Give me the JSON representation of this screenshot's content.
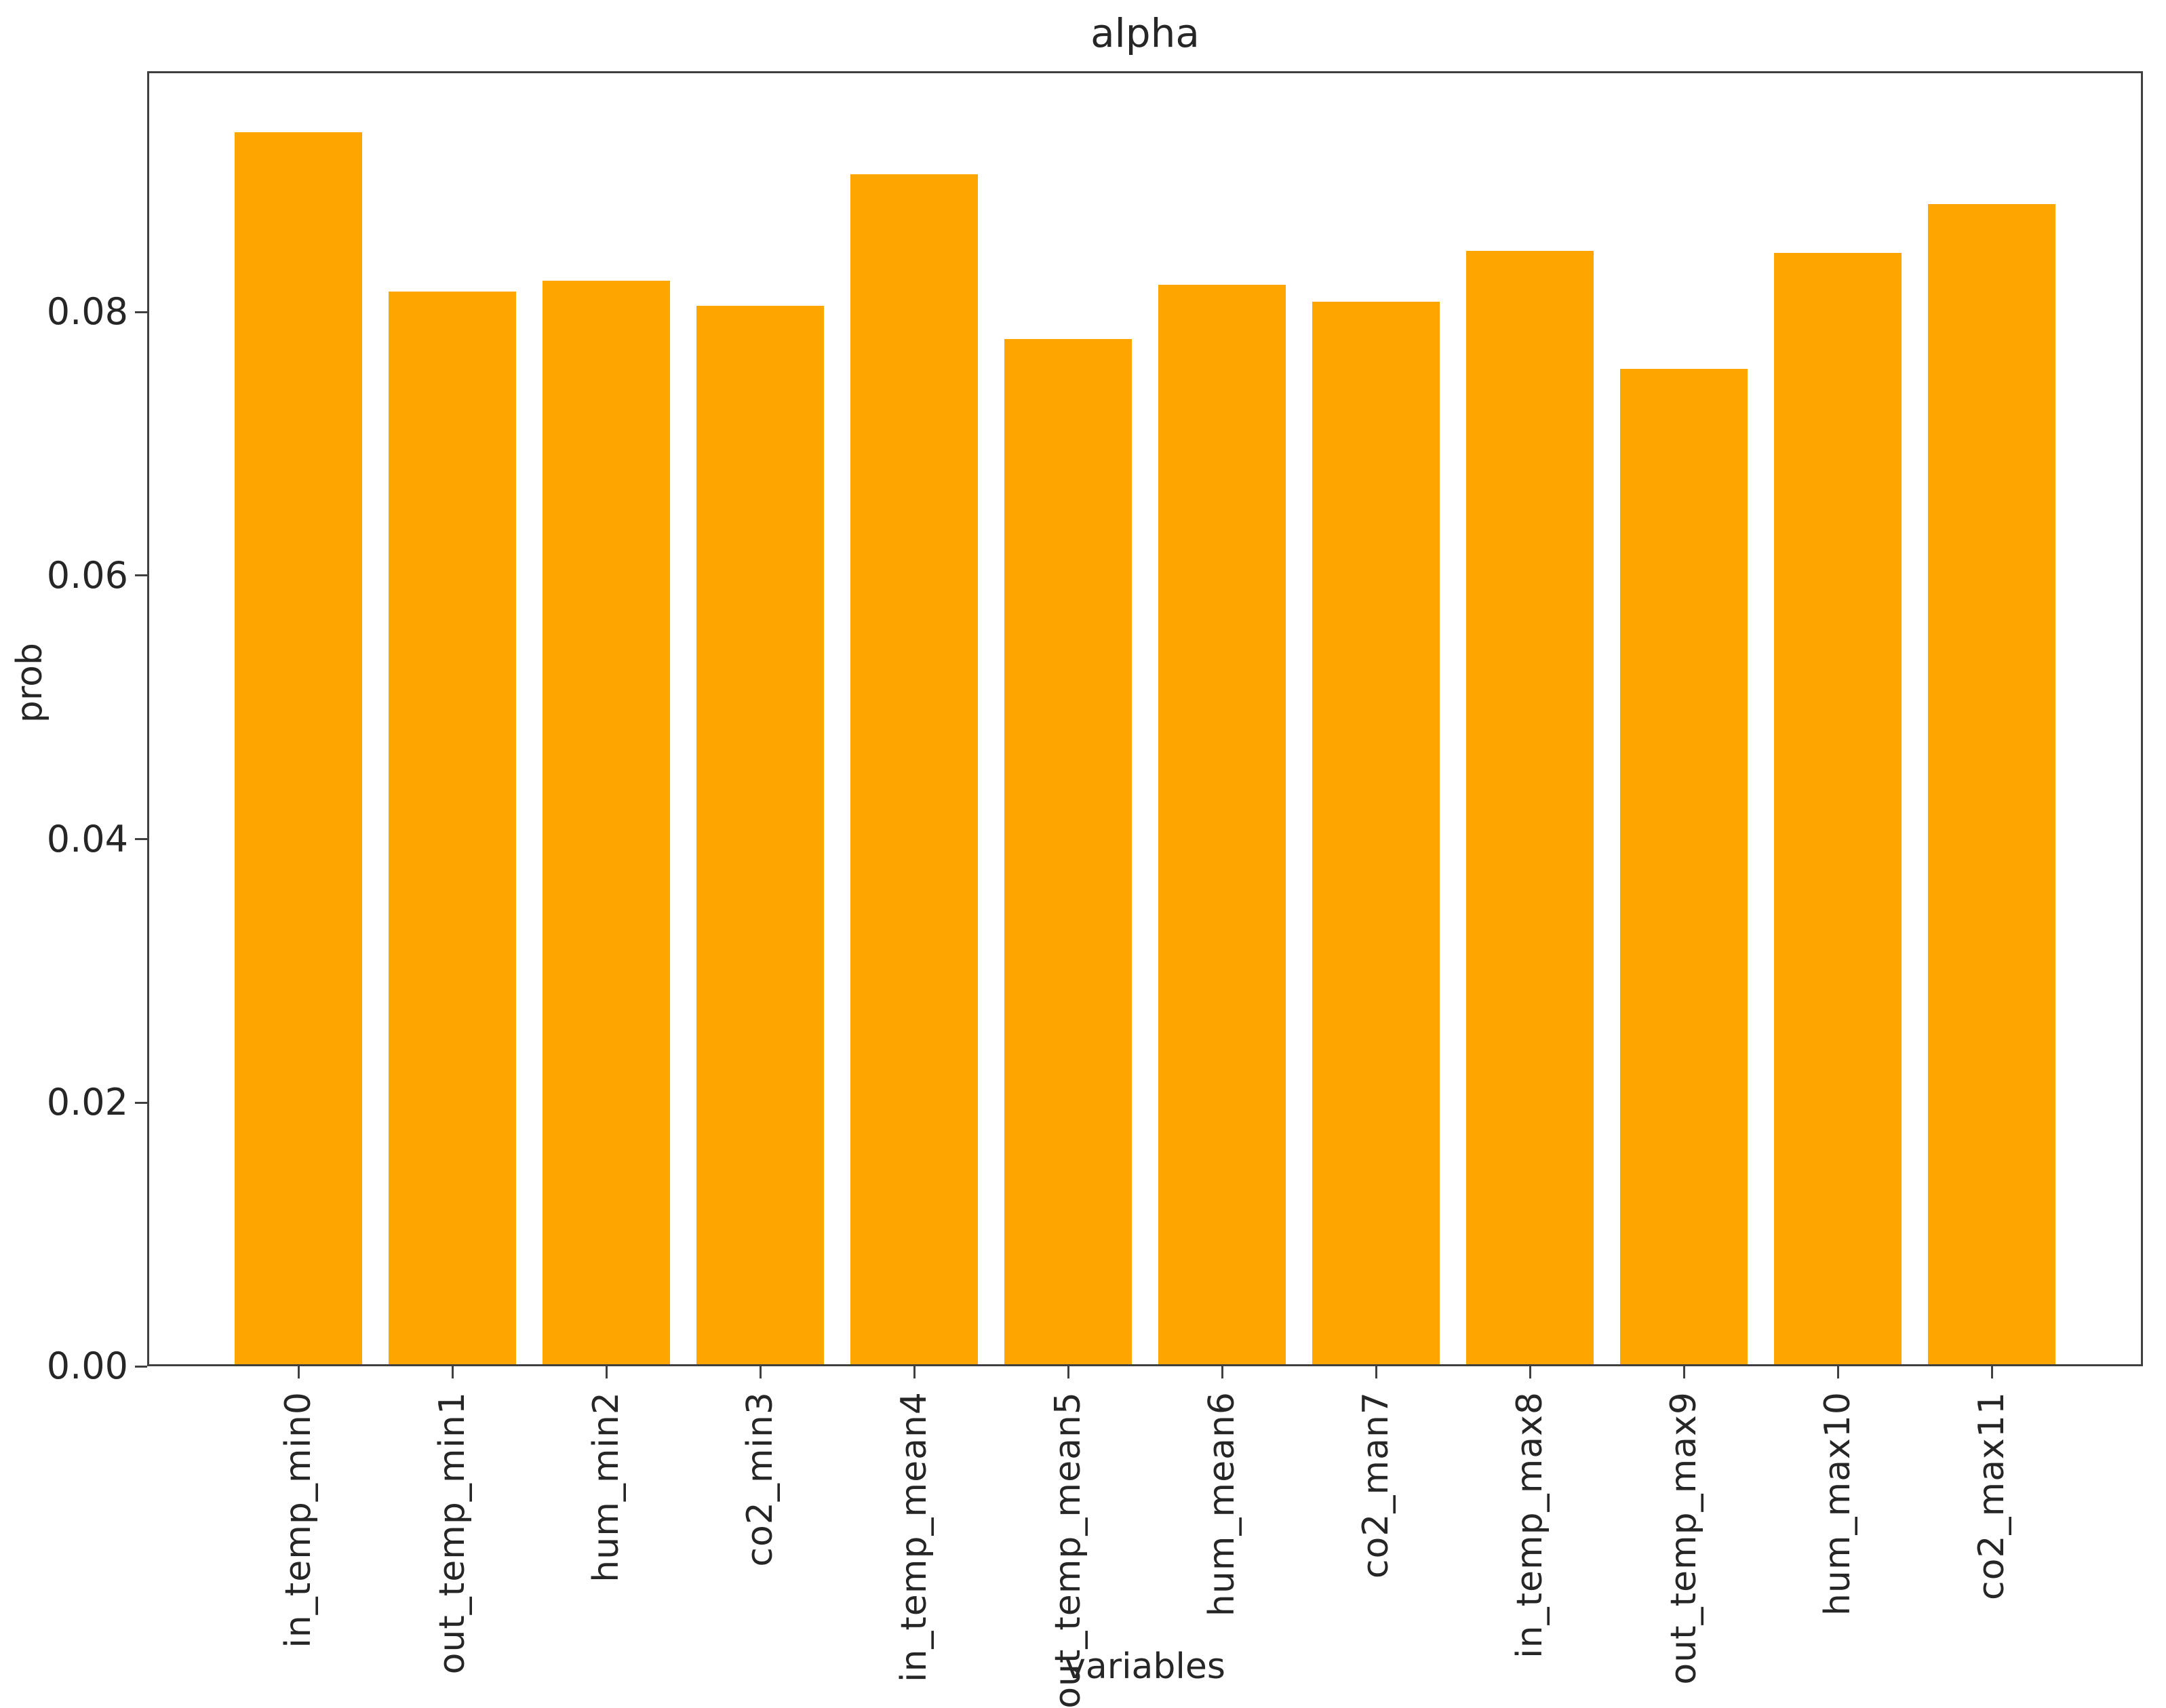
{
  "chart_data": {
    "type": "bar",
    "title": "alpha",
    "xlabel": "variables",
    "ylabel": "prob",
    "categories": [
      "in_temp_min0",
      "out_temp_min1",
      "hum_min2",
      "co2_min3",
      "in_temp_mean4",
      "out_temp_mean5",
      "hum_mean6",
      "co2_man7",
      "in_temp_max8",
      "out_temp_max9",
      "hum_max10",
      "co2_max11"
    ],
    "values": [
      0.0935,
      0.0814,
      0.0822,
      0.0803,
      0.0903,
      0.0778,
      0.0819,
      0.0806,
      0.0845,
      0.0755,
      0.0843,
      0.088
    ],
    "yticks": [
      0.0,
      0.02,
      0.04,
      0.06,
      0.08
    ],
    "ytick_labels": [
      "0.00",
      "0.02",
      "0.04",
      "0.06",
      "0.08"
    ],
    "ylim": [
      0,
      0.0983
    ],
    "bar_color": "#FFA500",
    "axis_color": "#404040",
    "text_color": "#262626",
    "grid": false,
    "legend_position": "none"
  }
}
